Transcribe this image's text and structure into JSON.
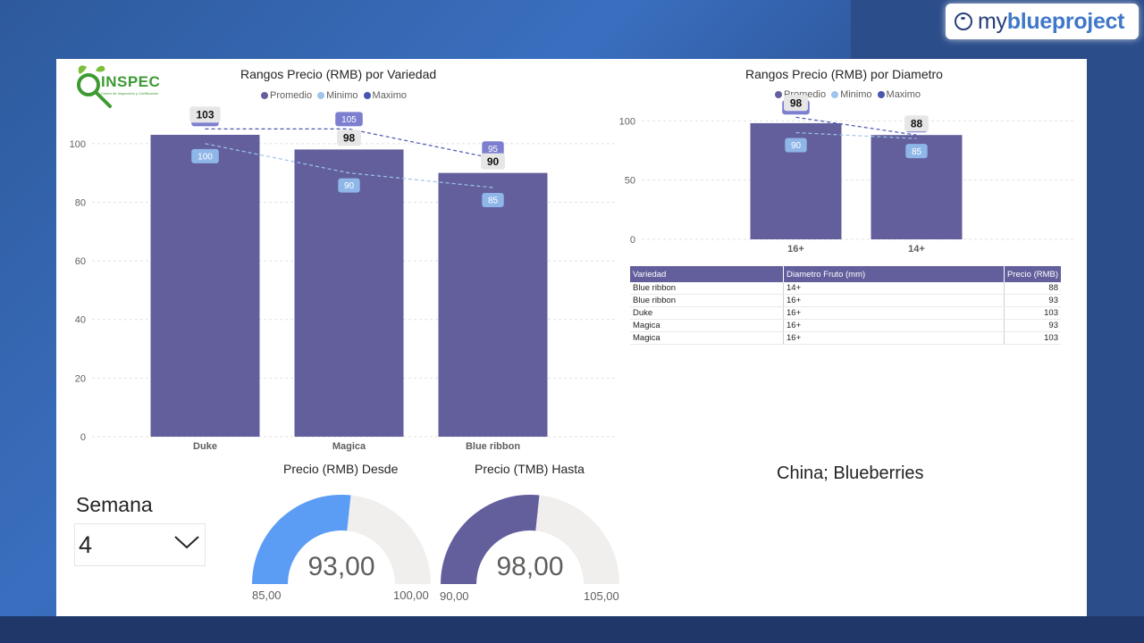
{
  "brand": {
    "prefix": "my",
    "name": "blueproject"
  },
  "logo": {
    "text": "INSPEC",
    "sub": "Centro de Inspección y Certificación"
  },
  "chart_data": [
    {
      "type": "bar",
      "title": "Rangos Precio (RMB) por Variedad",
      "categories": [
        "Duke",
        "Magica",
        "Blue ribbon"
      ],
      "series": [
        {
          "name": "Promedio",
          "values": [
            103,
            98,
            90
          ],
          "color": "#625f9c"
        },
        {
          "name": "Minimo",
          "values": [
            100,
            90,
            85
          ],
          "color": "#9ec5ec"
        },
        {
          "name": "Maximo",
          "values": [
            105,
            105,
            95
          ],
          "color": "#4a55b0"
        }
      ],
      "ylim": [
        0,
        110
      ],
      "yticks": [
        0,
        20,
        40,
        60,
        80,
        100
      ],
      "grid": true,
      "legend": "top"
    },
    {
      "type": "bar",
      "title": "Rangos Precio (RMB) por Diametro",
      "categories": [
        "16+",
        "14+"
      ],
      "series": [
        {
          "name": "Promedio",
          "values": [
            98,
            88
          ],
          "color": "#625f9c"
        },
        {
          "name": "Minimo",
          "values": [
            90,
            85
          ],
          "color": "#9ec5ec"
        },
        {
          "name": "Maximo",
          "values": [
            103,
            88
          ],
          "color": "#4a55b0"
        }
      ],
      "ylim": [
        0,
        110
      ],
      "yticks": [
        0,
        50,
        100
      ],
      "grid": true,
      "legend": "top"
    }
  ],
  "table": {
    "columns": [
      "Variedad",
      "Diametro Fruto (mm)",
      "Precio (RMB)"
    ],
    "rows": [
      [
        "Blue ribbon",
        "14+",
        "88"
      ],
      [
        "Blue ribbon",
        "16+",
        "93"
      ],
      [
        "Duke",
        "16+",
        "103"
      ],
      [
        "Magica",
        "16+",
        "93"
      ],
      [
        "Magica",
        "16+",
        "103"
      ]
    ]
  },
  "gauges": [
    {
      "title": "Precio (RMB) Desde",
      "value": 93,
      "min": 85,
      "max": 100,
      "value_label": "93,00",
      "min_label": "85,00",
      "max_label": "100,00",
      "color": "#5b9cf5"
    },
    {
      "title": "Precio (TMB) Hasta",
      "value": 98,
      "min": 90,
      "max": 105,
      "value_label": "98,00",
      "min_label": "90,00",
      "max_label": "105,00",
      "color": "#625f9c"
    }
  ],
  "filter": {
    "label": "Semana",
    "value": "4"
  },
  "note": "China; Blueberries"
}
